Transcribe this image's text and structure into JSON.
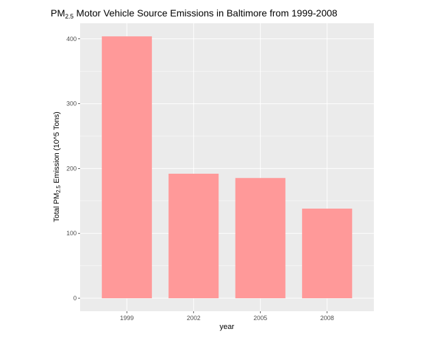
{
  "chart_data": {
    "type": "bar",
    "title": {
      "prefix": "PM",
      "subscript": "2.5",
      "suffix": " Motor Vehicle Source Emissions in Baltimore from 1999-2008"
    },
    "xlabel": "year",
    "ylabel": {
      "prefix": "Total PM",
      "subscript": "2.5",
      "suffix": " Emission (10^5 Tons)"
    },
    "categories": [
      "1999",
      "2002",
      "2005",
      "2008"
    ],
    "values": [
      403.8,
      192.0,
      185.4,
      138.2
    ],
    "ylim": [
      -20,
      424
    ],
    "yticks": [
      0,
      100,
      200,
      300,
      400
    ],
    "bar_color": "#ff9999",
    "panel_color": "#ebebeb",
    "grid": true,
    "legend": "none"
  }
}
